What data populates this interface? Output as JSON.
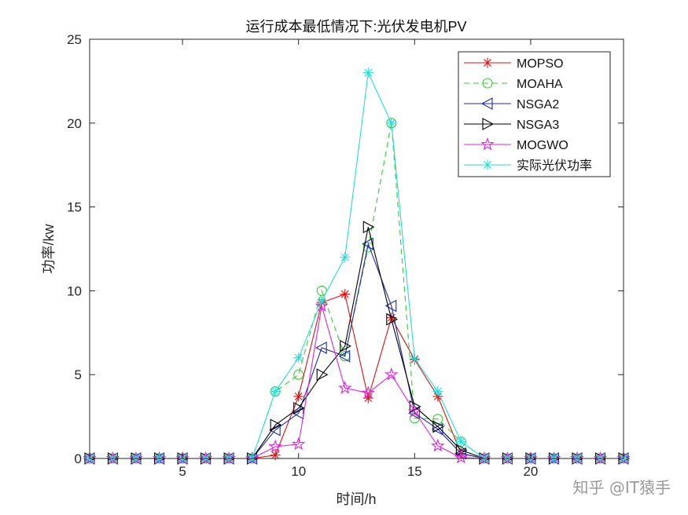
{
  "chart_data": {
    "type": "line",
    "title": "运行成本最低情况下:光伏发电机PV",
    "xlabel": "时间/h",
    "ylabel": "功率/kw",
    "xlim": [
      1,
      24
    ],
    "ylim": [
      0,
      25
    ],
    "xticks": [
      5,
      10,
      15,
      20
    ],
    "yticks": [
      0,
      5,
      10,
      15,
      20,
      25
    ],
    "grid": false,
    "legend_position": "top-right",
    "x": [
      1,
      2,
      3,
      4,
      5,
      6,
      7,
      8,
      9,
      10,
      11,
      12,
      13,
      14,
      15,
      16,
      17,
      18,
      19,
      20,
      21,
      22,
      23,
      24
    ],
    "series": [
      {
        "name": "MOPSO",
        "color": "#dd1111",
        "marker": "asterisk",
        "dash": false,
        "values": [
          0,
          0,
          0,
          0,
          0,
          0,
          0,
          0,
          0.2,
          3.7,
          9.3,
          9.8,
          3.6,
          8.4,
          5.9,
          3.7,
          0.3,
          0,
          0,
          0,
          0,
          0,
          0,
          0
        ]
      },
      {
        "name": "MOAHA",
        "color": "#33cc33",
        "marker": "circle",
        "dash": true,
        "values": [
          0,
          0,
          0,
          0,
          0,
          0,
          0,
          0,
          4.0,
          5.0,
          10.0,
          6.1,
          12.6,
          20.0,
          2.4,
          2.35,
          1.0,
          0,
          0,
          0,
          0,
          0,
          0,
          0
        ]
      },
      {
        "name": "NSGA2",
        "color": "#1f2aa8",
        "marker": "triangle-left",
        "dash": false,
        "values": [
          0,
          0,
          0,
          0,
          0,
          0,
          0,
          0,
          1.7,
          2.7,
          6.6,
          6.1,
          12.8,
          9.1,
          2.7,
          1.75,
          0.3,
          0,
          0,
          0,
          0,
          0,
          0,
          0
        ]
      },
      {
        "name": "NSGA3",
        "color": "#000000",
        "marker": "triangle-right",
        "dash": false,
        "values": [
          0,
          0,
          0,
          0,
          0,
          0,
          0,
          0,
          2.0,
          3.0,
          5.0,
          6.7,
          13.8,
          8.3,
          3.1,
          1.9,
          0.5,
          0,
          0,
          0,
          0,
          0,
          0,
          0
        ]
      },
      {
        "name": "MOGWO",
        "color": "#e020e0",
        "marker": "pentagram",
        "dash": false,
        "values": [
          0,
          0,
          0,
          0,
          0,
          0,
          0,
          0,
          0.7,
          0.85,
          9.1,
          4.2,
          3.9,
          5.0,
          2.8,
          0.75,
          0.05,
          0,
          0,
          0,
          0,
          0,
          0,
          0
        ]
      },
      {
        "name": "实际光伏功率",
        "color": "#22dddd",
        "marker": "asterisk",
        "dash": false,
        "values": [
          0,
          0,
          0,
          0,
          0,
          0,
          0,
          0,
          4.0,
          6.0,
          9.4,
          12.0,
          23.0,
          20.0,
          5.95,
          4.0,
          1.0,
          0,
          0,
          0,
          0,
          0,
          0,
          0
        ]
      }
    ]
  },
  "watermark": "知乎 @IT猿手"
}
